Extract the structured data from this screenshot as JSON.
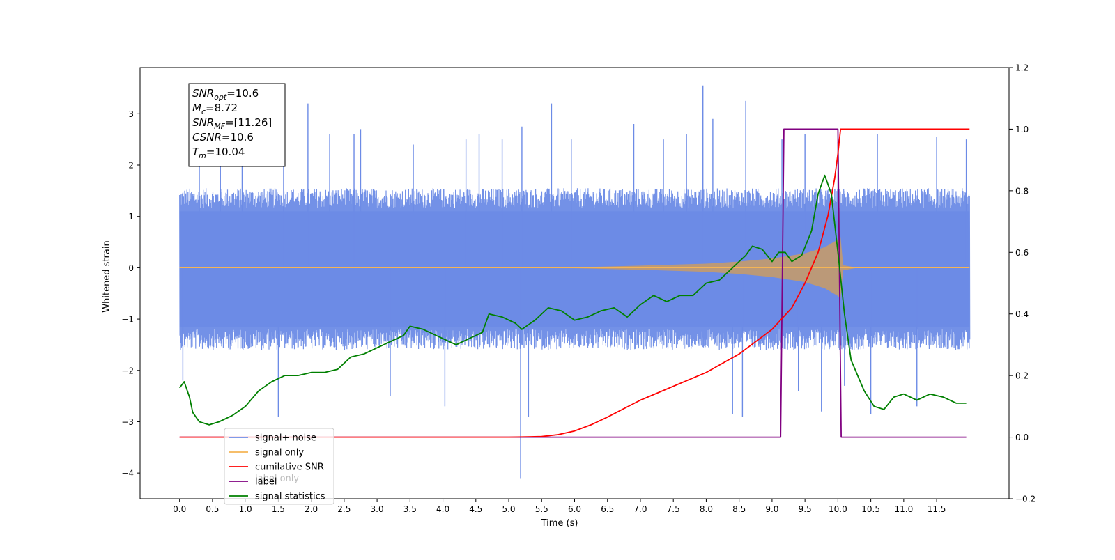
{
  "chart_data": {
    "type": "line",
    "xlabel": "Time (s)",
    "ylabel": "Whitened strain",
    "xlim": [
      -0.6,
      12.6
    ],
    "ylim": [
      -4.5,
      3.9
    ],
    "y2lim": [
      -0.2,
      1.2
    ],
    "x_ticks": [
      0.0,
      0.5,
      1.0,
      1.5,
      2.0,
      2.5,
      3.0,
      3.5,
      4.0,
      4.5,
      5.0,
      5.5,
      6.0,
      6.5,
      7.0,
      7.5,
      8.0,
      8.5,
      9.0,
      9.5,
      10.0,
      10.5,
      11.0,
      11.5
    ],
    "x_tick_labels": [
      "0.0",
      "0.5",
      "1.0",
      "1.5",
      "2.0",
      "2.5",
      "3.0",
      "3.5",
      "4.0",
      "4.5",
      "5.0",
      "5.5",
      "6.0",
      "6.5",
      "7.0",
      "7.5",
      "8.0",
      "8.5",
      "9.0",
      "9.5",
      "10.0",
      "10.5",
      "11.0",
      "11.5"
    ],
    "y_ticks": [
      3,
      2,
      1,
      0,
      -1,
      -2,
      -3,
      -4
    ],
    "y_tick_labels": [
      "3",
      "2",
      "1",
      "0",
      "−1",
      "−2",
      "−3",
      "−4"
    ],
    "y2_ticks": [
      1.2,
      1.0,
      0.8,
      0.6,
      0.4,
      0.2,
      0.0,
      -0.2
    ],
    "y2_tick_labels": [
      "1.2",
      "1.0",
      "0.8",
      "0.6",
      "0.4",
      "0.2",
      "0.0",
      "−0.2"
    ],
    "grid": false,
    "legend_placement": "lower-left",
    "colors": {
      "signal_noise": "#6c8be6",
      "signal_only": "#f5b555",
      "cumulative_snr": "#ff0000",
      "label": "#800080",
      "signal_statistics": "#008000"
    },
    "annotation_box": {
      "lines": [
        {
          "base": "SNR",
          "sub": "opt",
          "rest": "=10.6"
        },
        {
          "base": "M",
          "sub": "c",
          "rest": "=8.72"
        },
        {
          "base": "SNR",
          "sub": "MF",
          "rest": "=[11.26]"
        },
        {
          "base": "CSNR",
          "sub": "",
          "rest": "=10.6"
        },
        {
          "base": "T",
          "sub": "m",
          "rest": "=10.04"
        }
      ]
    },
    "series": [
      {
        "name": "signal+ noise",
        "axis": "left",
        "x_range": [
          0.0,
          12.0
        ],
        "band_upper": 1.55,
        "band_lower": -1.6,
        "spikes": [
          [
            0.05,
            -2.2
          ],
          [
            0.3,
            2.3
          ],
          [
            0.62,
            2.5
          ],
          [
            0.95,
            2.6
          ],
          [
            1.5,
            -2.9
          ],
          [
            1.58,
            2.8
          ],
          [
            1.95,
            3.2
          ],
          [
            2.28,
            2.6
          ],
          [
            2.65,
            2.6
          ],
          [
            2.75,
            2.7
          ],
          [
            3.2,
            -2.5
          ],
          [
            3.55,
            2.4
          ],
          [
            4.03,
            -2.7
          ],
          [
            4.35,
            2.5
          ],
          [
            4.55,
            2.6
          ],
          [
            4.9,
            2.5
          ],
          [
            5.2,
            2.75
          ],
          [
            5.18,
            -4.1
          ],
          [
            5.3,
            -2.9
          ],
          [
            5.65,
            3.2
          ],
          [
            5.95,
            2.5
          ],
          [
            6.9,
            2.8
          ],
          [
            7.35,
            2.5
          ],
          [
            7.7,
            2.6
          ],
          [
            7.95,
            3.55
          ],
          [
            8.1,
            2.9
          ],
          [
            8.6,
            3.25
          ],
          [
            8.4,
            -2.85
          ],
          [
            8.55,
            -2.9
          ],
          [
            9.15,
            2.5
          ],
          [
            9.4,
            -2.4
          ],
          [
            9.5,
            2.6
          ],
          [
            9.75,
            -2.8
          ],
          [
            10.0,
            2.45
          ],
          [
            10.1,
            -2.3
          ],
          [
            10.5,
            -2.85
          ],
          [
            10.6,
            2.6
          ],
          [
            11.2,
            -2.7
          ],
          [
            11.5,
            2.55
          ],
          [
            11.95,
            2.5
          ]
        ]
      },
      {
        "name": "signal only",
        "axis": "left",
        "envelope": [
          [
            0.0,
            0.0
          ],
          [
            6.0,
            0.01
          ],
          [
            7.0,
            0.04
          ],
          [
            8.0,
            0.08
          ],
          [
            8.5,
            0.12
          ],
          [
            9.0,
            0.18
          ],
          [
            9.5,
            0.28
          ],
          [
            9.8,
            0.4
          ],
          [
            10.0,
            0.55
          ],
          [
            10.04,
            0.6
          ],
          [
            10.08,
            0.05
          ],
          [
            10.3,
            0.0
          ],
          [
            12.0,
            0.0
          ]
        ]
      },
      {
        "name": "cumilative SNR",
        "axis": "right",
        "points": [
          [
            0.0,
            0.0
          ],
          [
            5.0,
            0.0
          ],
          [
            5.5,
            0.002
          ],
          [
            5.75,
            0.008
          ],
          [
            6.0,
            0.02
          ],
          [
            6.25,
            0.04
          ],
          [
            6.5,
            0.065
          ],
          [
            7.0,
            0.12
          ],
          [
            7.5,
            0.165
          ],
          [
            8.0,
            0.21
          ],
          [
            8.5,
            0.27
          ],
          [
            9.0,
            0.35
          ],
          [
            9.3,
            0.42
          ],
          [
            9.5,
            0.5
          ],
          [
            9.7,
            0.6
          ],
          [
            9.85,
            0.72
          ],
          [
            9.95,
            0.84
          ],
          [
            10.0,
            0.92
          ],
          [
            10.04,
            1.0
          ],
          [
            12.0,
            1.0
          ]
        ]
      },
      {
        "name": "label",
        "axis": "right",
        "points": [
          [
            0.0,
            0.0
          ],
          [
            9.13,
            0.0
          ],
          [
            9.18,
            1.0
          ],
          [
            10.0,
            1.0
          ],
          [
            10.05,
            0.0
          ],
          [
            11.95,
            0.0
          ]
        ]
      },
      {
        "name": "signal statistics",
        "axis": "right",
        "points": [
          [
            0.0,
            0.16
          ],
          [
            0.07,
            0.18
          ],
          [
            0.15,
            0.13
          ],
          [
            0.2,
            0.08
          ],
          [
            0.3,
            0.05
          ],
          [
            0.45,
            0.04
          ],
          [
            0.6,
            0.05
          ],
          [
            0.8,
            0.07
          ],
          [
            1.0,
            0.1
          ],
          [
            1.2,
            0.15
          ],
          [
            1.4,
            0.18
          ],
          [
            1.6,
            0.2
          ],
          [
            1.8,
            0.2
          ],
          [
            2.0,
            0.21
          ],
          [
            2.2,
            0.21
          ],
          [
            2.4,
            0.22
          ],
          [
            2.6,
            0.26
          ],
          [
            2.8,
            0.27
          ],
          [
            3.0,
            0.29
          ],
          [
            3.2,
            0.31
          ],
          [
            3.4,
            0.33
          ],
          [
            3.5,
            0.36
          ],
          [
            3.7,
            0.35
          ],
          [
            3.9,
            0.33
          ],
          [
            4.2,
            0.3
          ],
          [
            4.4,
            0.32
          ],
          [
            4.6,
            0.34
          ],
          [
            4.7,
            0.4
          ],
          [
            4.9,
            0.39
          ],
          [
            5.1,
            0.37
          ],
          [
            5.2,
            0.35
          ],
          [
            5.4,
            0.38
          ],
          [
            5.6,
            0.42
          ],
          [
            5.8,
            0.41
          ],
          [
            6.0,
            0.38
          ],
          [
            6.2,
            0.39
          ],
          [
            6.4,
            0.41
          ],
          [
            6.6,
            0.42
          ],
          [
            6.8,
            0.39
          ],
          [
            7.0,
            0.43
          ],
          [
            7.2,
            0.46
          ],
          [
            7.4,
            0.44
          ],
          [
            7.6,
            0.46
          ],
          [
            7.8,
            0.46
          ],
          [
            8.0,
            0.5
          ],
          [
            8.2,
            0.51
          ],
          [
            8.4,
            0.55
          ],
          [
            8.6,
            0.59
          ],
          [
            8.7,
            0.62
          ],
          [
            8.85,
            0.61
          ],
          [
            9.0,
            0.57
          ],
          [
            9.1,
            0.6
          ],
          [
            9.2,
            0.6
          ],
          [
            9.3,
            0.57
          ],
          [
            9.45,
            0.59
          ],
          [
            9.6,
            0.67
          ],
          [
            9.7,
            0.79
          ],
          [
            9.8,
            0.85
          ],
          [
            9.9,
            0.79
          ],
          [
            10.0,
            0.6
          ],
          [
            10.1,
            0.4
          ],
          [
            10.2,
            0.25
          ],
          [
            10.4,
            0.15
          ],
          [
            10.55,
            0.1
          ],
          [
            10.7,
            0.09
          ],
          [
            10.85,
            0.13
          ],
          [
            11.0,
            0.14
          ],
          [
            11.2,
            0.12
          ],
          [
            11.4,
            0.14
          ],
          [
            11.6,
            0.13
          ],
          [
            11.8,
            0.11
          ],
          [
            11.95,
            0.11
          ]
        ]
      }
    ],
    "legend": [
      {
        "name": "signal+ noise",
        "color": "#6c8be6"
      },
      {
        "name": "signal only",
        "color": "#f5b555"
      },
      {
        "name": "cumilative SNR",
        "color": "#ff0000"
      },
      {
        "name": "label",
        "color": "#800080"
      },
      {
        "name": "signal statistics",
        "color": "#008000"
      }
    ],
    "legend_overlap_text": "label only"
  }
}
